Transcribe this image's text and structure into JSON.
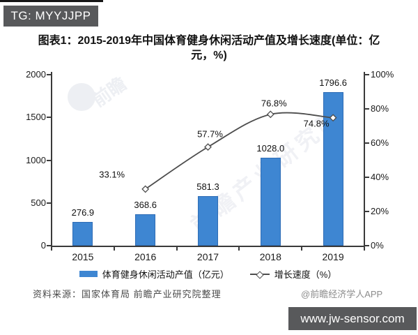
{
  "header": {
    "tag": "TG: MYYJJPP"
  },
  "title": {
    "text": "图表1：2015-2019年中国体育健身休闲活动产值及增长速度(单位：亿元，%)"
  },
  "watermarks": {
    "logo_text": "前瞻",
    "diagonal_text": "前瞻产业研究院"
  },
  "chart_data": {
    "type": "combo",
    "categories": [
      "2015",
      "2016",
      "2017",
      "2018",
      "2019"
    ],
    "series": [
      {
        "name": "体育健身休闲活动产值（亿元）",
        "type": "bar",
        "axis": "left",
        "values": [
          276.9,
          368.6,
          581.3,
          1028.0,
          1796.6
        ],
        "labels": [
          "276.9",
          "368.6",
          "581.3",
          "1028.0",
          "1796.6"
        ],
        "color": "#3e86d2"
      },
      {
        "name": "增长速度（%）",
        "type": "line",
        "axis": "right",
        "values": [
          null,
          33.1,
          57.7,
          76.8,
          74.8
        ],
        "labels": [
          null,
          "33.1%",
          "57.7%",
          "76.8%",
          "74.8%"
        ],
        "color": "#4d4d4d"
      }
    ],
    "left_axis": {
      "min": 0,
      "max": 2000,
      "ticks": [
        0,
        500,
        1000,
        1500,
        2000
      ]
    },
    "right_axis": {
      "min": 0,
      "max": 100,
      "ticks": [
        "0%",
        "20%",
        "40%",
        "60%",
        "80%",
        "100%"
      ]
    },
    "legend_position": "bottom",
    "grid": false
  },
  "footer": {
    "source": "资料来源：国家体育局 前瞻产业研究院整理",
    "credit": "@前瞻经济学人APP"
  },
  "bottom_bar": {
    "url": "www.jw-sensor.com"
  },
  "colors": {
    "bar": "#3e86d2",
    "bar_border": "#2e6cb5",
    "line": "#4d4d4d",
    "badge_bg": "#58595b",
    "badge_text": "#ffffff",
    "bottom_bar_bg": "#58595b",
    "bottom_bar_text": "#ffffff",
    "credit_text": "#8c8c8c",
    "axis": "#3a3a3a"
  }
}
